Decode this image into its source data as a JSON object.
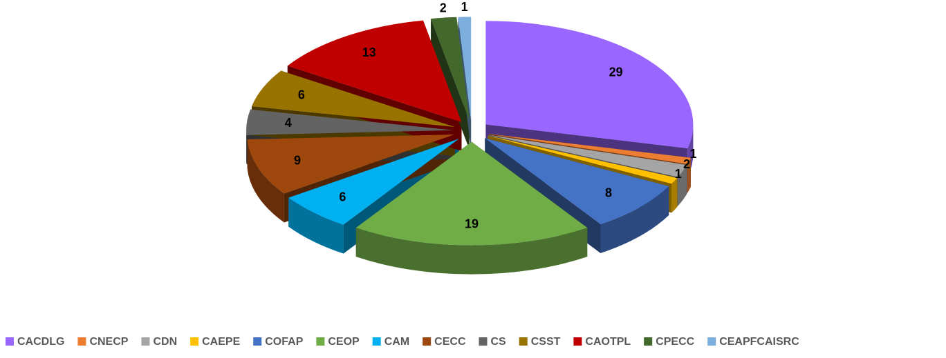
{
  "chart_data": {
    "type": "pie3d",
    "categories": [
      "CACDLG",
      "CNECP",
      "CDN",
      "CAEPE",
      "COFAP",
      "CEOP",
      "CAM",
      "CECC",
      "CS",
      "CSST",
      "CAOTPL",
      "CPECC",
      "CEAPFCAISRC"
    ],
    "values": [
      29,
      1,
      2,
      1,
      8,
      19,
      6,
      9,
      4,
      6,
      13,
      2,
      1
    ],
    "colors": [
      "#9966ff",
      "#ed7d31",
      "#a5a5a5",
      "#ffc000",
      "#4472c4",
      "#70ad47",
      "#00b0f0",
      "#9e480e",
      "#636363",
      "#997300",
      "#c00000",
      "#43682b",
      "#7cafdd"
    ],
    "legend": "bottom"
  }
}
